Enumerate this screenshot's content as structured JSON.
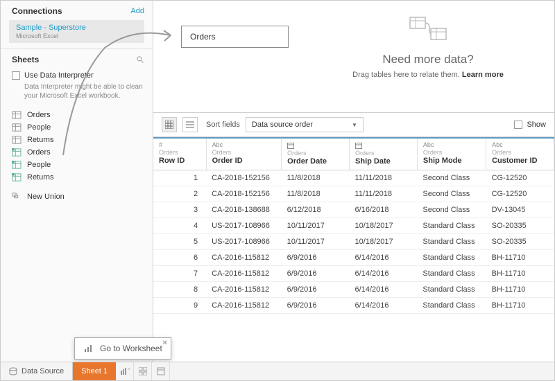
{
  "colors": {
    "accent_orange": "#e8762d",
    "link": "#1a9cc7",
    "header_border": "#5a9bc4"
  },
  "sidebar": {
    "connections_label": "Connections",
    "add_label": "Add",
    "connection": {
      "name": "Sample - Superstore",
      "type": "Microsoft Excel"
    },
    "sheets_label": "Sheets",
    "interpreter": {
      "checkbox_label": "Use Data Interpreter",
      "help_text": "Data Interpreter might be able to clean your Microsoft Excel workbook."
    },
    "items": [
      {
        "label": "Orders",
        "kind": "table"
      },
      {
        "label": "People",
        "kind": "table"
      },
      {
        "label": "Returns",
        "kind": "table"
      },
      {
        "label": "Orders",
        "kind": "named"
      },
      {
        "label": "People",
        "kind": "named"
      },
      {
        "label": "Returns",
        "kind": "named"
      }
    ],
    "new_union": "New Union"
  },
  "canvas": {
    "table_name": "Orders",
    "need_title": "Need more data?",
    "need_sub": "Drag tables here to relate them. ",
    "learn_more": "Learn more"
  },
  "toolbar": {
    "sort_label": "Sort fields",
    "sort_value": "Data source order",
    "show_label": "Show"
  },
  "grid": {
    "columns": [
      {
        "type": "#",
        "source": "Orders",
        "name": "Row ID",
        "align": "num"
      },
      {
        "type": "Abc",
        "source": "Orders",
        "name": "Order ID",
        "align": "txt"
      },
      {
        "type": "date",
        "source": "Orders",
        "name": "Order Date",
        "align": "txt"
      },
      {
        "type": "date",
        "source": "Orders",
        "name": "Ship Date",
        "align": "txt"
      },
      {
        "type": "Abc",
        "source": "Orders",
        "name": "Ship Mode",
        "align": "txt"
      },
      {
        "type": "Abc",
        "source": "Orders",
        "name": "Customer ID",
        "align": "txt"
      }
    ],
    "rows": [
      [
        "1",
        "CA-2018-152156",
        "11/8/2018",
        "11/11/2018",
        "Second Class",
        "CG-12520"
      ],
      [
        "2",
        "CA-2018-152156",
        "11/8/2018",
        "11/11/2018",
        "Second Class",
        "CG-12520"
      ],
      [
        "3",
        "CA-2018-138688",
        "6/12/2018",
        "6/16/2018",
        "Second Class",
        "DV-13045"
      ],
      [
        "4",
        "US-2017-108966",
        "10/11/2017",
        "10/18/2017",
        "Standard Class",
        "SO-20335"
      ],
      [
        "5",
        "US-2017-108966",
        "10/11/2017",
        "10/18/2017",
        "Standard Class",
        "SO-20335"
      ],
      [
        "6",
        "CA-2016-115812",
        "6/9/2016",
        "6/14/2016",
        "Standard Class",
        "BH-11710"
      ],
      [
        "7",
        "CA-2016-115812",
        "6/9/2016",
        "6/14/2016",
        "Standard Class",
        "BH-11710"
      ],
      [
        "8",
        "CA-2016-115812",
        "6/9/2016",
        "6/14/2016",
        "Standard Class",
        "BH-11710"
      ],
      [
        "9",
        "CA-2016-115812",
        "6/9/2016",
        "6/14/2016",
        "Standard Class",
        "BH-11710"
      ]
    ]
  },
  "bottom": {
    "data_source": "Data Source",
    "sheet1": "Sheet 1",
    "tooltip": "Go to Worksheet"
  }
}
